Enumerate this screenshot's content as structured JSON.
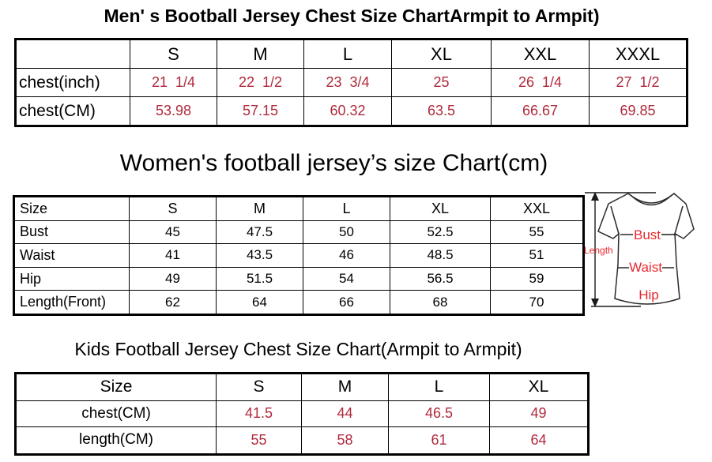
{
  "colors": {
    "table_value_red": "#b02a3d",
    "diagram_label_red": "#e6282d",
    "table_border_black": "#000000"
  },
  "mens_chart": {
    "title": "Men' s Bootball Jersey Chest Size ChartArmpit to Armpit)",
    "columns": [
      "",
      "S",
      "M",
      "L",
      "XL",
      "XXL",
      "XXXL"
    ],
    "rows": [
      {
        "label": "chest(inch)",
        "values": [
          "21  1/4",
          "22  1/2",
          "23  3/4",
          "25",
          "26  1/4",
          "27  1/2"
        ]
      },
      {
        "label": "chest(CM)",
        "values": [
          "53.98",
          "57.15",
          "60.32",
          "63.5",
          "66.67",
          "69.85"
        ]
      }
    ]
  },
  "womens_chart": {
    "title": "Women's football jersey’s size Chart(cm)",
    "columns": [
      "Size",
      "S",
      "M",
      "L",
      "XL",
      "XXL"
    ],
    "rows": [
      {
        "label": "Bust",
        "values": [
          "45",
          "47.5",
          "50",
          "52.5",
          "55"
        ]
      },
      {
        "label": "Waist",
        "values": [
          "41",
          "43.5",
          "46",
          "48.5",
          "51"
        ]
      },
      {
        "label": "Hip",
        "values": [
          "49",
          "51.5",
          "54",
          "56.5",
          "59"
        ]
      },
      {
        "label": "Length(Front)",
        "values": [
          "62",
          "64",
          "66",
          "68",
          "70"
        ]
      }
    ]
  },
  "kids_chart": {
    "title": "Kids Football Jersey Chest Size Chart(Armpit to Armpit)",
    "columns": [
      "Size",
      "S",
      "M",
      "L",
      "XL"
    ],
    "rows": [
      {
        "label": "chest(CM)",
        "values": [
          "41.5",
          "44",
          "46.5",
          "49"
        ]
      },
      {
        "label": "length(CM)",
        "values": [
          "55",
          "58",
          "61",
          "64"
        ]
      }
    ]
  },
  "diagram": {
    "length_label": "Length",
    "bust_label": "Bust",
    "waist_label": "Waist",
    "hip_label": "Hip"
  }
}
